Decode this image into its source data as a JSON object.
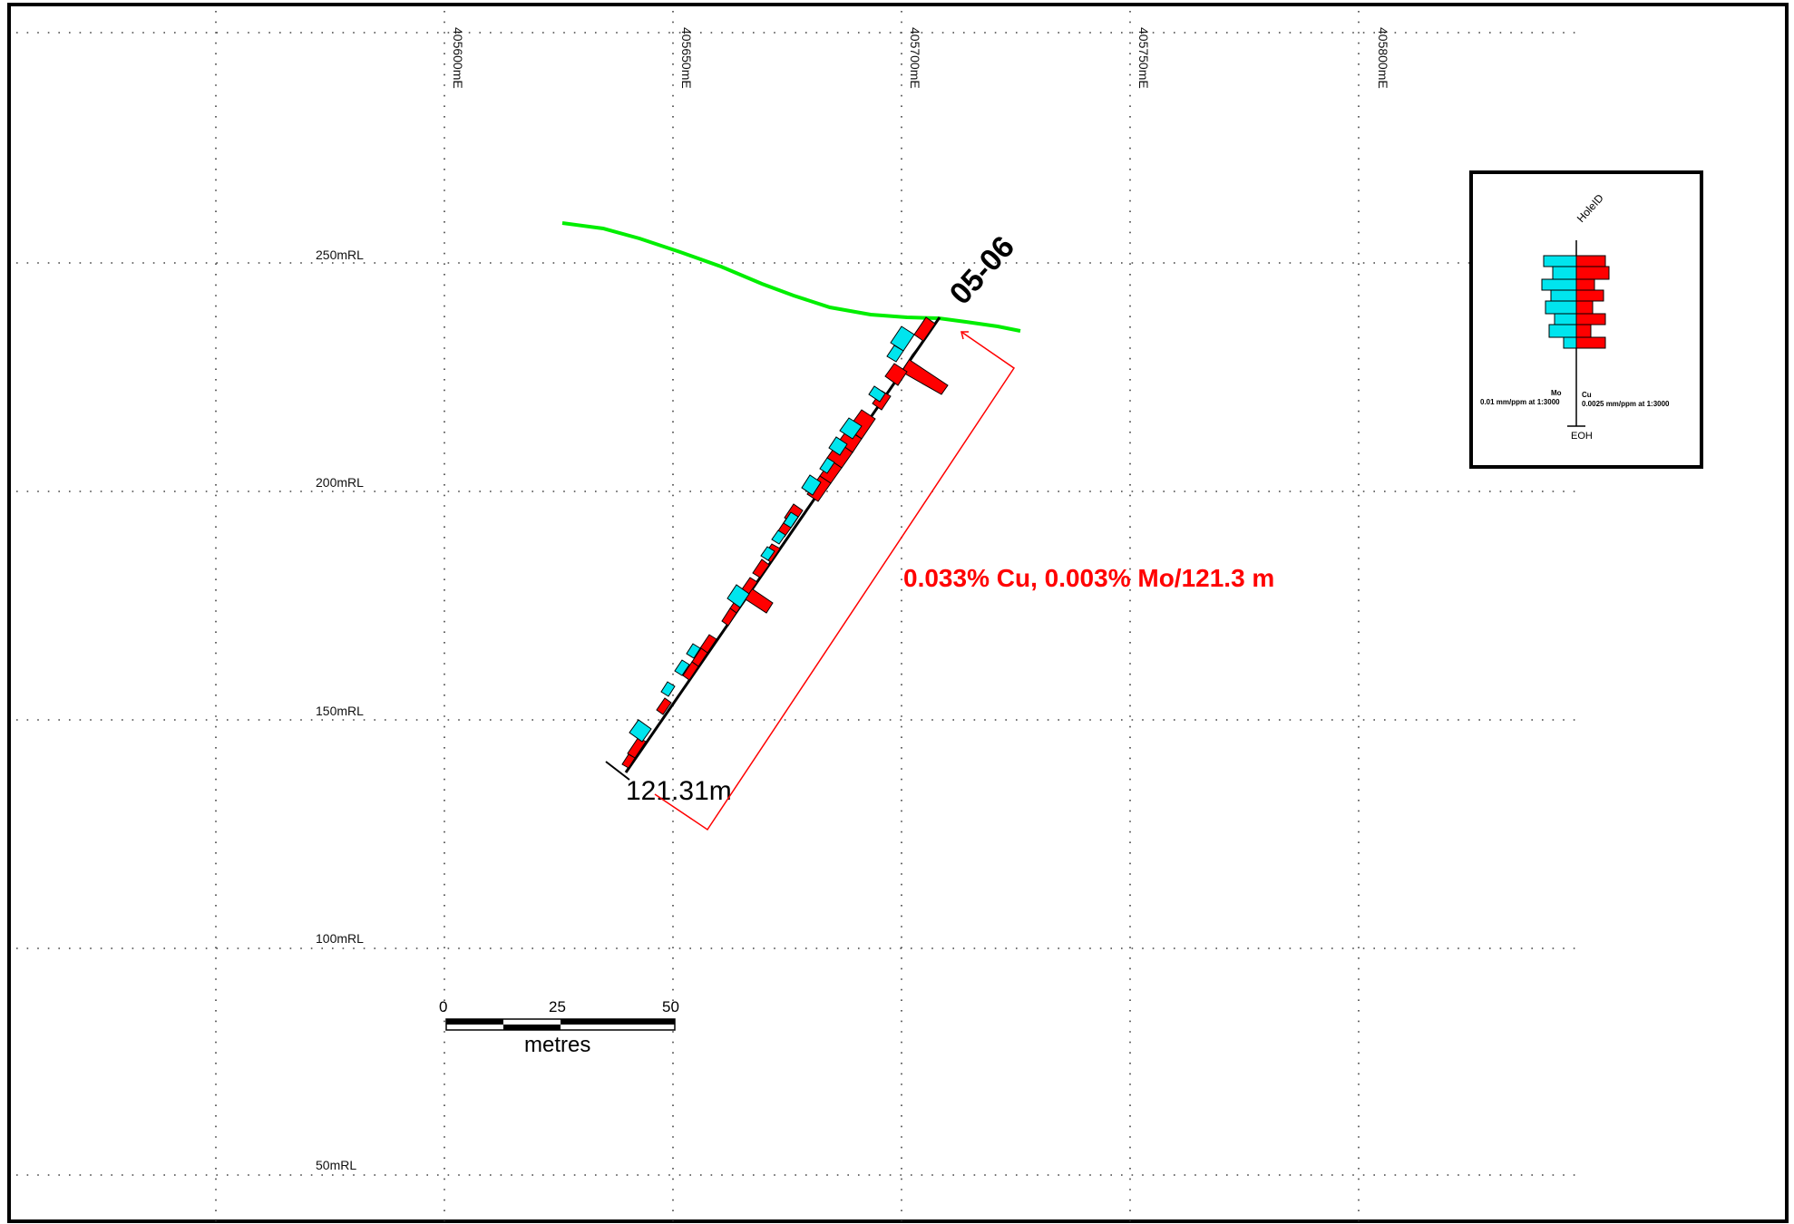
{
  "section": {
    "easting_labels": [
      "405600mE",
      "405650mE",
      "405700mE",
      "405750mE",
      "405800mE"
    ],
    "rl_labels": [
      "250mRL",
      "200mRL",
      "150mRL",
      "100mRL",
      "50mRL"
    ],
    "hole_id": "05-06",
    "end_depth_label": "121.31m",
    "intercept_text": "0.033% Cu, 0.003% Mo/121.3 m"
  },
  "scale_bar": {
    "ticks": [
      "0",
      "25",
      "50"
    ],
    "unit": "metres"
  },
  "legend": {
    "hole_id_label": "HoleID",
    "mo_label": "Mo",
    "mo_scale": "0.01 mm/ppm at 1:3000",
    "cu_label": "Cu",
    "cu_scale": "0.0025 mm/ppm at 1:3000",
    "eoh_label": "EOH"
  },
  "colors": {
    "cu": "#ff0000",
    "mo": "#00e5ee",
    "topography": "#00ee00",
    "intercept": "#ff0000",
    "frame": "#000000"
  }
}
